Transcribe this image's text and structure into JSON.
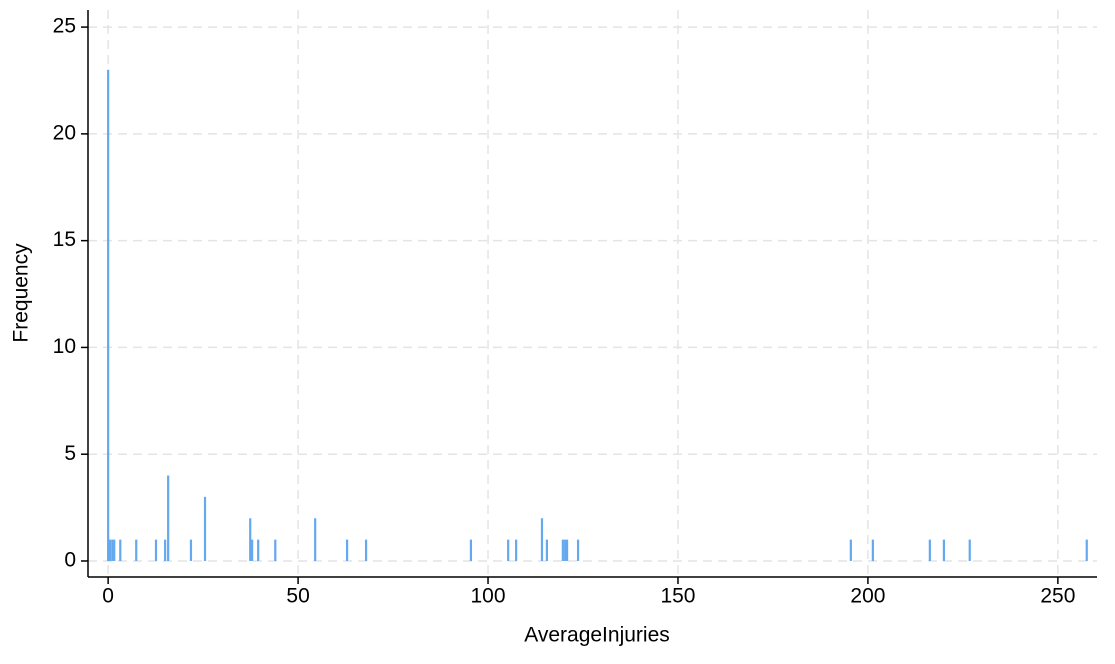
{
  "chart_data": {
    "type": "spike",
    "x_label": "AverageInjuries",
    "y_label": "Frequency",
    "x": [
      0,
      0.5,
      1.1,
      1.6,
      3.2,
      7.4,
      12.6,
      15,
      15.8,
      21.8,
      25.5,
      37.4,
      37.9,
      39.5,
      44,
      54.5,
      62.9,
      67.9,
      95.5,
      105.3,
      107.4,
      114.2,
      115.5,
      119.7,
      120.3,
      120.8,
      123.7,
      195.5,
      201.3,
      216.3,
      220,
      226.8,
      257.6
    ],
    "values": [
      23,
      1,
      1,
      1,
      1,
      1,
      1,
      1,
      4,
      1,
      3,
      2,
      1,
      1,
      1,
      2,
      1,
      1,
      1,
      1,
      1,
      2,
      1,
      1,
      1,
      1,
      1,
      1,
      1,
      1,
      1,
      1,
      1
    ],
    "color": "#64a8f0",
    "xlim": [
      -5.3,
      260.3
    ],
    "xticks": [
      0,
      50,
      100,
      150,
      200,
      250
    ],
    "ylim": [
      -0.75,
      25.8
    ],
    "yticks": [
      0,
      5,
      10,
      15,
      20,
      25
    ],
    "grid": true
  }
}
